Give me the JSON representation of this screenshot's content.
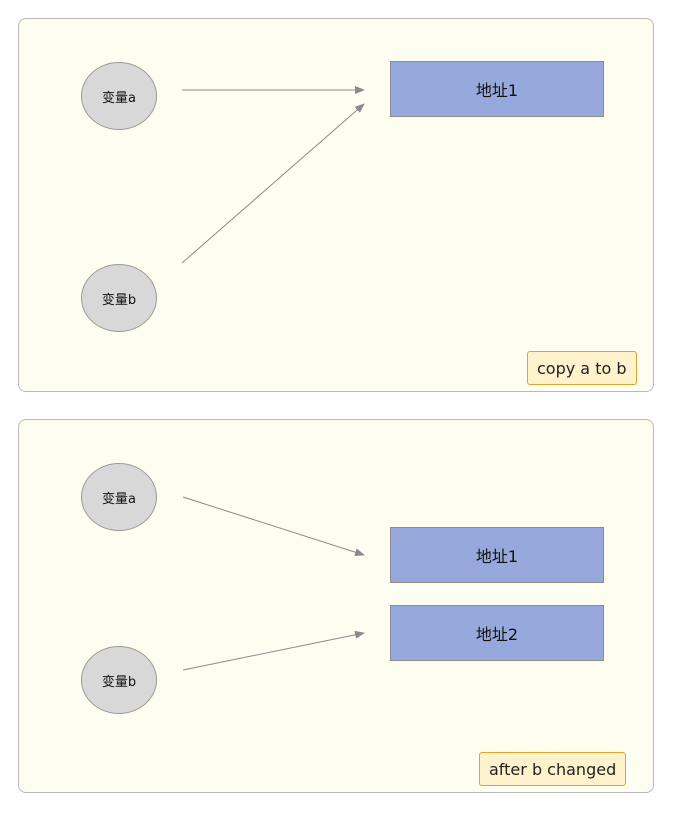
{
  "panels": [
    {
      "var_a": "变量a",
      "var_b": "变量b",
      "addresses": [
        "地址1"
      ],
      "caption": "copy a to b",
      "edges": [
        {
          "from": "变量a",
          "to": "地址1"
        },
        {
          "from": "变量b",
          "to": "地址1"
        }
      ]
    },
    {
      "var_a": "变量a",
      "var_b": "变量b",
      "addresses": [
        "地址1",
        "地址2"
      ],
      "caption": "after b changed",
      "edges": [
        {
          "from": "变量a",
          "to": "地址1"
        },
        {
          "from": "变量b",
          "to": "地址2"
        }
      ]
    }
  ],
  "colors": {
    "panel_bg": "#fefef0",
    "node_fill": "#d8d8d8",
    "address_fill": "#96a8dc",
    "caption_fill": "#fff2cc",
    "caption_border": "#e6a32a",
    "arrow": "#8a8a8a"
  }
}
